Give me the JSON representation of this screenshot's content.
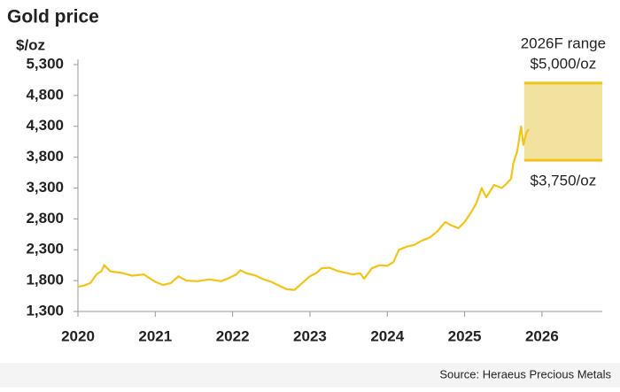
{
  "chart_data": {
    "type": "line",
    "title": "Gold price",
    "y_label": "$/oz",
    "source": "Source: Heraeus Precious Metals",
    "color": "#f0c419",
    "x": [
      2020.0,
      2020.08,
      2020.16,
      2020.24,
      2020.3,
      2020.34,
      2020.42,
      2020.55,
      2020.7,
      2020.85,
      2021.0,
      2021.1,
      2021.2,
      2021.3,
      2021.4,
      2021.55,
      2021.7,
      2021.85,
      2021.95,
      2022.05,
      2022.1,
      2022.18,
      2022.3,
      2022.4,
      2022.5,
      2022.6,
      2022.7,
      2022.8,
      2022.9,
      2023.0,
      2023.08,
      2023.15,
      2023.25,
      2023.35,
      2023.45,
      2023.55,
      2023.65,
      2023.7,
      2023.8,
      2023.9,
      2024.0,
      2024.08,
      2024.15,
      2024.25,
      2024.35,
      2024.45,
      2024.55,
      2024.65,
      2024.75,
      2024.82,
      2024.92,
      2025.0,
      2025.08,
      2025.15,
      2025.22,
      2025.28,
      2025.38,
      2025.48,
      2025.55,
      2025.6,
      2025.63,
      2025.68,
      2025.7,
      2025.73,
      2025.76,
      2025.8,
      2025.83
    ],
    "values": [
      1700,
      1720,
      1760,
      1900,
      1950,
      2050,
      1950,
      1930,
      1880,
      1900,
      1780,
      1730,
      1760,
      1870,
      1800,
      1790,
      1820,
      1790,
      1840,
      1900,
      1970,
      1920,
      1880,
      1820,
      1780,
      1720,
      1660,
      1650,
      1760,
      1870,
      1920,
      2000,
      2010,
      1960,
      1930,
      1900,
      1920,
      1830,
      2000,
      2050,
      2040,
      2100,
      2300,
      2350,
      2380,
      2450,
      2500,
      2600,
      2750,
      2700,
      2650,
      2750,
      2900,
      3050,
      3300,
      3150,
      3350,
      3300,
      3380,
      3450,
      3700,
      3900,
      4050,
      4300,
      4000,
      4200,
      4250
    ],
    "xlim": [
      2020,
      2026.78
    ],
    "xticks": [
      2020,
      2021,
      2022,
      2023,
      2024,
      2025,
      2026
    ],
    "ylim": [
      1300,
      5300
    ],
    "yticks": [
      {
        "value": 1300,
        "label": "1,300"
      },
      {
        "value": 1800,
        "label": "1,800"
      },
      {
        "value": 2300,
        "label": "2,300"
      },
      {
        "value": 2800,
        "label": "2,800"
      },
      {
        "value": 3300,
        "label": "3,300"
      },
      {
        "value": 3800,
        "label": "3,800"
      },
      {
        "value": 4300,
        "label": "4,300"
      },
      {
        "value": 4800,
        "label": "4,800"
      },
      {
        "value": 5300,
        "label": "5,300"
      }
    ],
    "range": {
      "label": "2026F range",
      "low": 3750,
      "high": 5000,
      "low_label": "$3,750/oz",
      "high_label": "$5,000/oz",
      "x": [
        2025.77,
        2026.78
      ],
      "color": "#f2e2a0"
    }
  }
}
